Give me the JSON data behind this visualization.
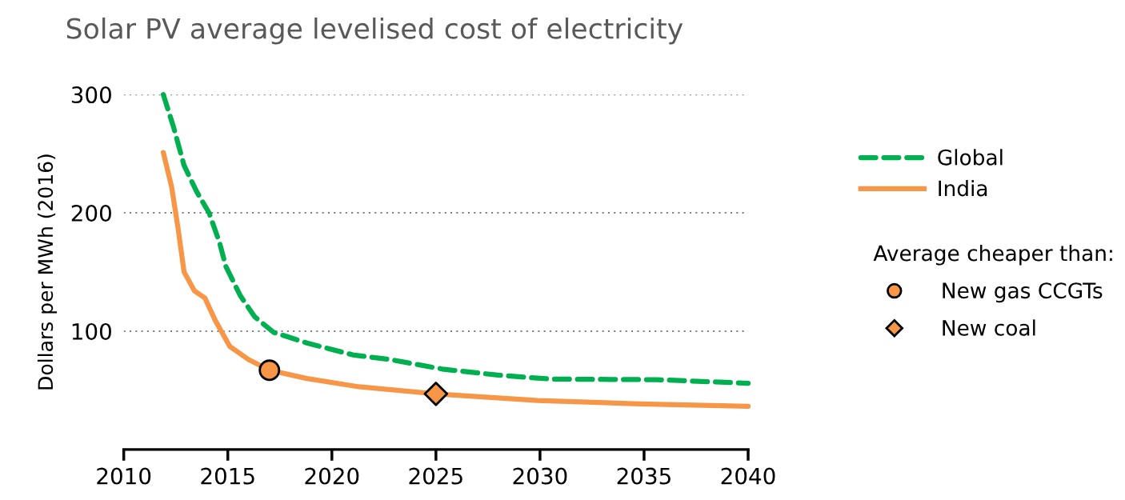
{
  "chart_data": {
    "type": "line",
    "title": "Solar PV average levelised cost of electricity",
    "ylabel": "Dollars per MWh (2016)",
    "legend_title": "Average cheaper than:",
    "series": [
      {
        "name": "Global",
        "color": "#00b050",
        "line_style": "dashed",
        "x": [
          2011.9,
          2012.4,
          2012.9,
          2013.5,
          2014.1,
          2014.6,
          2014.9,
          2015.6,
          2016.3,
          2017.2,
          2018.8,
          2021,
          2022.8,
          2025.3,
          2027.9,
          2030.5,
          2035.6,
          2040
        ],
        "values": [
          300,
          272,
          240,
          218,
          200,
          175,
          155,
          130,
          112,
          99,
          90,
          80,
          76,
          68,
          63,
          59.5,
          59,
          56
        ]
      },
      {
        "name": "India",
        "color": "#f79646",
        "line_style": "solid",
        "x": [
          2011.9,
          2012.3,
          2012.6,
          2012.9,
          2013.4,
          2013.9,
          2014.4,
          2015.1,
          2016,
          2017,
          2018.8,
          2021.3,
          2025,
          2029.9,
          2034.8,
          2040
        ],
        "values": [
          251,
          222,
          188,
          150,
          134,
          128,
          109,
          87,
          76,
          67,
          60,
          53,
          47,
          41.4,
          38.5,
          36.5
        ]
      },
      {
        "name": "New gas CCGTs",
        "type": "scatter",
        "marker": "circle",
        "color": "#f79646",
        "x": [
          2017
        ],
        "values": [
          67
        ]
      },
      {
        "name": "New coal",
        "type": "scatter",
        "marker": "diamond",
        "color": "#f79646",
        "x": [
          2025
        ],
        "values": [
          47
        ]
      }
    ],
    "xlim": [
      2010,
      2040
    ],
    "xticks": [
      2010,
      2015,
      2020,
      2025,
      2030,
      2035,
      2040
    ],
    "ylim": [
      0,
      300
    ],
    "yticks": [
      100,
      200,
      300
    ],
    "grid": "y",
    "legend": "right"
  }
}
